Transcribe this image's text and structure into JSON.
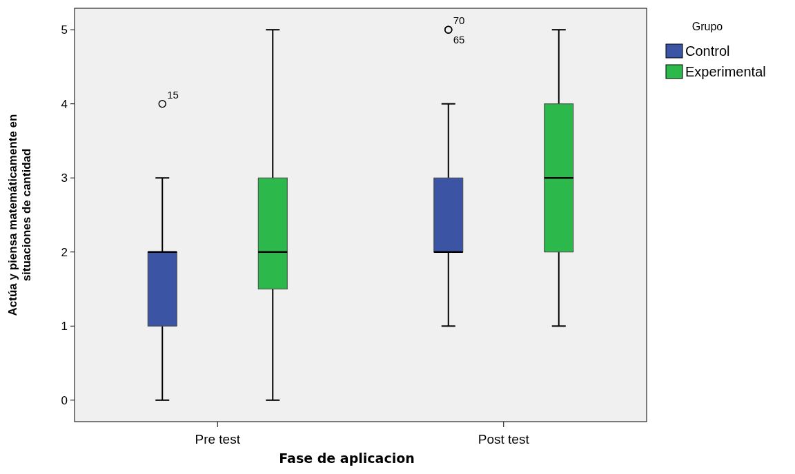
{
  "chart_data": {
    "type": "box",
    "xlabel": "Fase de aplicacion",
    "ylabel": "Actúa y piensa matemáticamente en situaciones de cantidad",
    "legend_title": "Grupo",
    "legend": "top right",
    "categories": [
      "Pre test",
      "Post test"
    ],
    "ylim": [
      -0.29,
      5.29
    ],
    "yticks": [
      0,
      1,
      2,
      3,
      4,
      5
    ],
    "grid": false,
    "series": [
      {
        "name": "Control",
        "color": "#3b54a4",
        "boxes": [
          {
            "low": 0,
            "q1": 1,
            "median": 2,
            "q3": 2,
            "high": 3,
            "outliers": [
              4
            ]
          },
          {
            "low": 1,
            "q1": 2,
            "median": 2,
            "q3": 3,
            "high": 4,
            "outliers": [
              5,
              5
            ]
          }
        ]
      },
      {
        "name": "Experimental",
        "color": "#2db84b",
        "boxes": [
          {
            "low": 0,
            "q1": 1.5,
            "median": 2,
            "q3": 3,
            "high": 5
          },
          {
            "low": 1,
            "q1": 2,
            "median": 3,
            "q3": 4,
            "high": 5
          }
        ]
      }
    ],
    "annotations": [
      "15",
      "70",
      "65"
    ]
  }
}
